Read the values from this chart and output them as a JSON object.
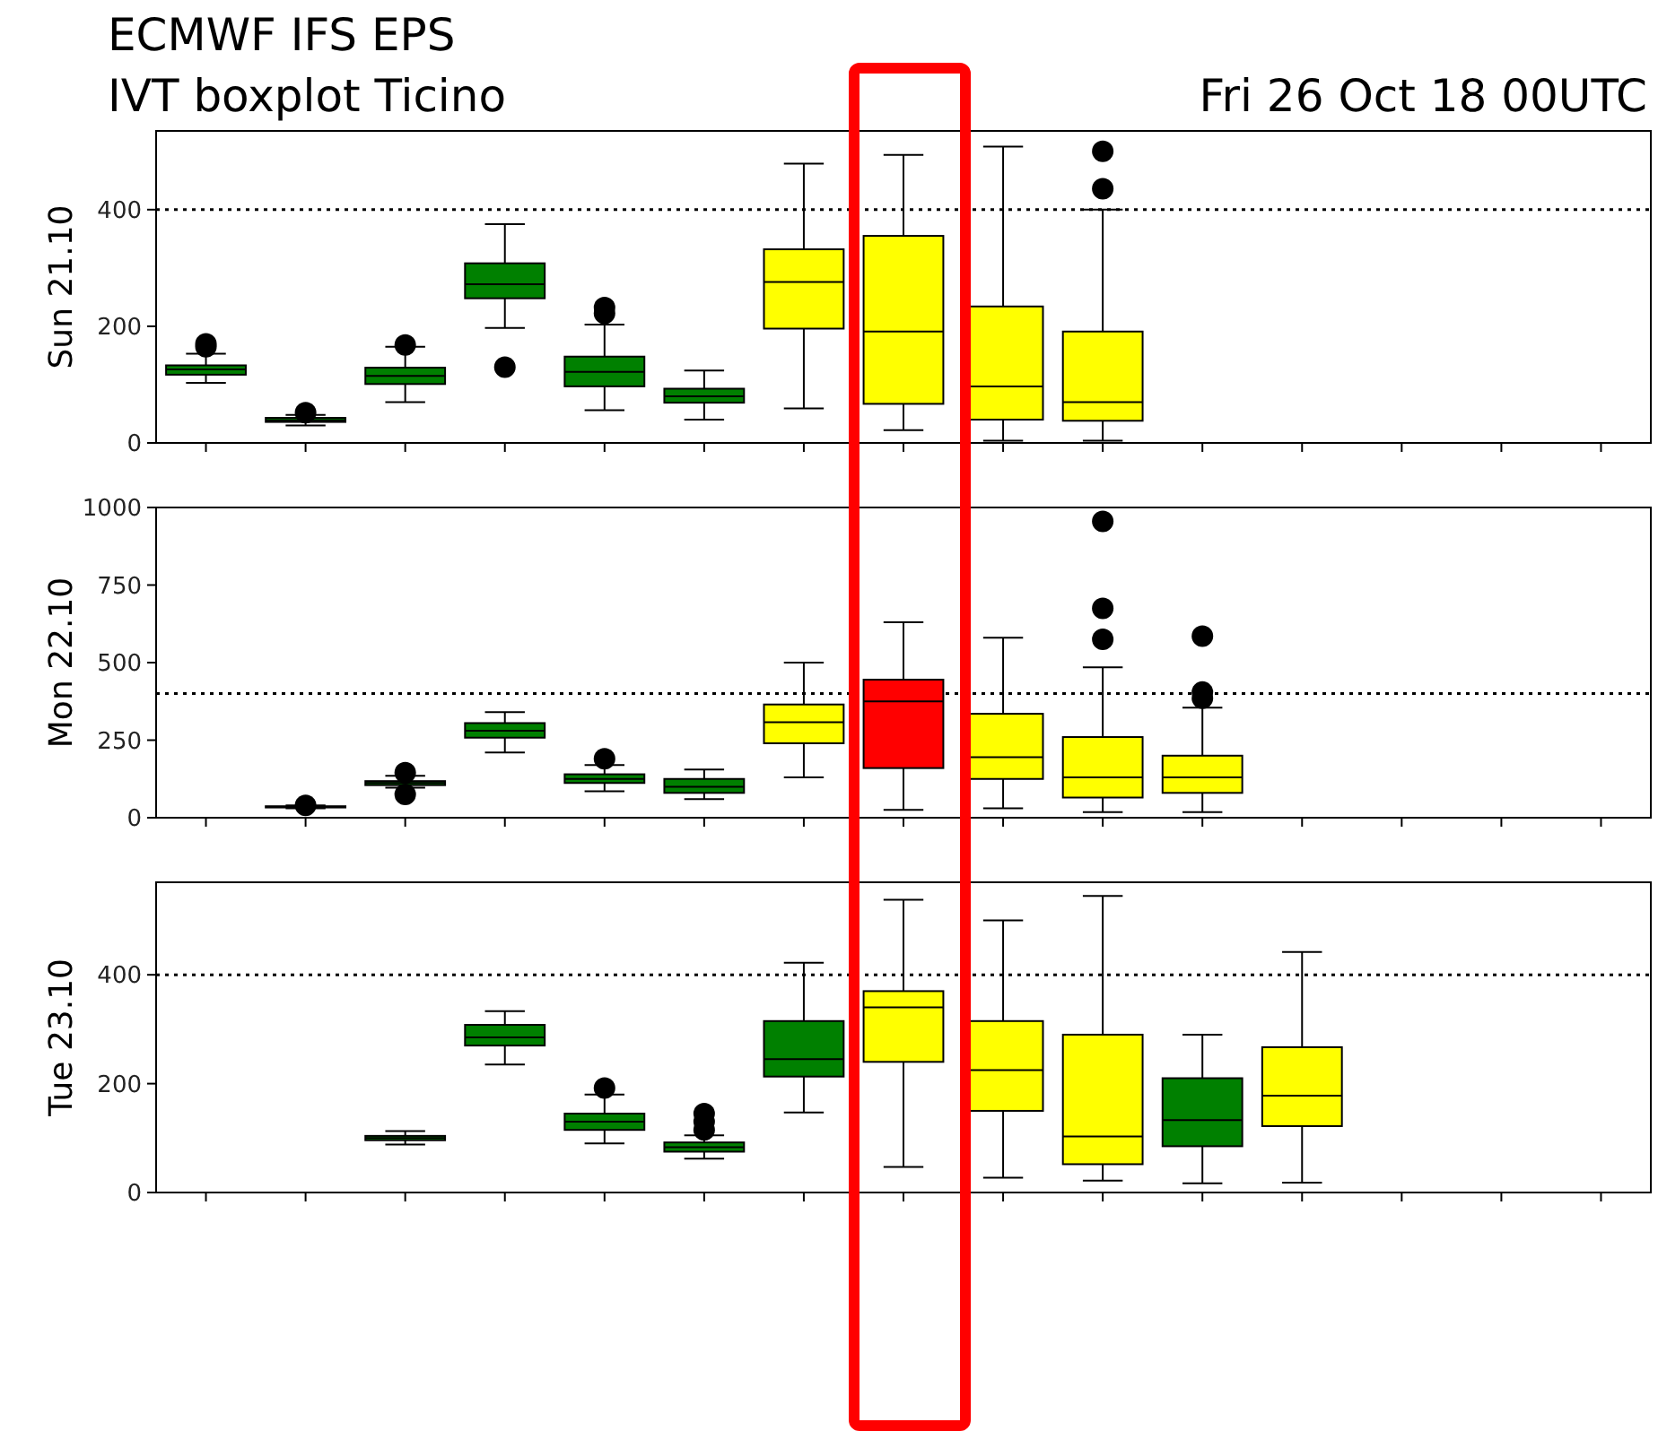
{
  "chart_data": [
    {
      "type": "box",
      "title": "ECMWF IFS EPS",
      "subtitle": "IVT boxplot Ticino",
      "annotations": [
        "Fri 26 Oct 18 00UTC"
      ],
      "ylabel": "Sun 21.10",
      "categories": [
        null,
        null,
        null,
        null,
        null,
        null,
        null,
        null,
        null,
        null,
        null,
        null,
        null,
        null,
        null
      ],
      "ylim": [
        0,
        535
      ],
      "yticks": [
        0,
        200,
        400
      ],
      "tick_labels": "y",
      "grid": false,
      "colors": [
        "#008000",
        "#008000",
        "#008000",
        "#008000",
        "#008000",
        "#008000",
        "#ffff00",
        "#ffff00",
        "#ffff00",
        "#ffff00",
        null,
        null,
        null,
        null,
        null
      ],
      "boxes": [
        {
          "low": 103,
          "q1": 117,
          "median": 126,
          "q3": 133,
          "high": 153,
          "outliers": [
            165,
            170
          ]
        },
        {
          "low": 30,
          "q1": 36,
          "median": 39,
          "q3": 43,
          "high": 48,
          "outliers": [
            52
          ]
        },
        {
          "low": 70,
          "q1": 101,
          "median": 115,
          "q3": 129,
          "high": 165,
          "outliers": [
            168
          ]
        },
        {
          "low": 197,
          "q1": 248,
          "median": 272,
          "q3": 308,
          "high": 375,
          "outliers": [
            130
          ]
        },
        {
          "low": 56,
          "q1": 97,
          "median": 122,
          "q3": 148,
          "high": 203,
          "outliers": [
            222,
            232
          ]
        },
        {
          "low": 40,
          "q1": 69,
          "median": 80,
          "q3": 93,
          "high": 124
        },
        {
          "low": 59,
          "q1": 196,
          "median": 276,
          "q3": 332,
          "high": 479
        },
        {
          "low": 22,
          "q1": 67,
          "median": 191,
          "q3": 355,
          "high": 494
        },
        {
          "low": 4,
          "q1": 40,
          "median": 97,
          "q3": 234,
          "high": 508
        },
        {
          "low": 4,
          "q1": 38,
          "median": 70,
          "q3": 191,
          "high": 400,
          "outliers": [
            436,
            500
          ]
        },
        null,
        null,
        null,
        null,
        null
      ],
      "ref_lines": [
        {
          "axis": "y",
          "value": 400,
          "color": "#000000",
          "line_style": "dotted"
        }
      ]
    },
    {
      "type": "box",
      "ylabel": "Mon 22.10",
      "categories": [
        null,
        null,
        null,
        null,
        null,
        null,
        null,
        null,
        null,
        null,
        null,
        null,
        null,
        null,
        null
      ],
      "ylim": [
        0,
        1000
      ],
      "yticks": [
        0,
        250,
        500,
        750,
        1000
      ],
      "tick_labels": "y",
      "grid": false,
      "colors": [
        null,
        "#008000",
        "#008000",
        "#008000",
        "#008000",
        "#008000",
        "#ffff00",
        "#ff0000",
        "#ffff00",
        "#ffff00",
        "#ffff00",
        null,
        null,
        null,
        null
      ],
      "boxes": [
        null,
        {
          "low": 30,
          "q1": 33,
          "median": 35,
          "q3": 37,
          "high": 40,
          "outliers": [
            40
          ]
        },
        {
          "low": 97,
          "q1": 105,
          "median": 112,
          "q3": 118,
          "high": 135,
          "outliers": [
            75,
            145
          ]
        },
        {
          "low": 210,
          "q1": 258,
          "median": 280,
          "q3": 305,
          "high": 340
        },
        {
          "low": 85,
          "q1": 112,
          "median": 125,
          "q3": 140,
          "high": 170,
          "outliers": [
            190
          ]
        },
        {
          "low": 60,
          "q1": 80,
          "median": 100,
          "q3": 125,
          "high": 155
        },
        {
          "low": 130,
          "q1": 240,
          "median": 308,
          "q3": 365,
          "high": 500
        },
        {
          "low": 25,
          "q1": 160,
          "median": 375,
          "q3": 445,
          "high": 630
        },
        {
          "low": 30,
          "q1": 125,
          "median": 195,
          "q3": 335,
          "high": 580
        },
        {
          "low": 18,
          "q1": 65,
          "median": 130,
          "q3": 260,
          "high": 485,
          "outliers": [
            575,
            675,
            955
          ]
        },
        {
          "low": 18,
          "q1": 80,
          "median": 130,
          "q3": 200,
          "high": 355,
          "outliers": [
            385,
            405,
            585
          ]
        },
        null,
        null,
        null,
        null
      ],
      "ref_lines": [
        {
          "axis": "y",
          "value": 400,
          "color": "#000000",
          "line_style": "dotted"
        }
      ]
    },
    {
      "type": "box",
      "ylabel": "Tue 23.10",
      "categories": [
        null,
        null,
        null,
        null,
        null,
        null,
        null,
        null,
        null,
        null,
        null,
        null,
        null,
        null,
        null
      ],
      "ylim": [
        0,
        570
      ],
      "yticks": [
        0,
        200,
        400
      ],
      "tick_labels": "y",
      "grid": false,
      "colors": [
        null,
        null,
        "#008000",
        "#008000",
        "#008000",
        "#008000",
        "#008000",
        "#ffff00",
        "#ffff00",
        "#ffff00",
        "#008000",
        "#ffff00",
        null,
        null,
        null
      ],
      "boxes": [
        null,
        null,
        {
          "low": 88,
          "q1": 96,
          "median": 100,
          "q3": 104,
          "high": 113
        },
        {
          "low": 235,
          "q1": 270,
          "median": 285,
          "q3": 308,
          "high": 333
        },
        {
          "low": 90,
          "q1": 115,
          "median": 130,
          "q3": 145,
          "high": 180,
          "outliers": [
            192
          ]
        },
        {
          "low": 62,
          "q1": 75,
          "median": 83,
          "q3": 92,
          "high": 105,
          "outliers": [
            115,
            130,
            145
          ]
        },
        {
          "low": 147,
          "q1": 213,
          "median": 245,
          "q3": 315,
          "high": 422
        },
        {
          "low": 47,
          "q1": 240,
          "median": 340,
          "q3": 370,
          "high": 538
        },
        {
          "low": 27,
          "q1": 150,
          "median": 225,
          "q3": 315,
          "high": 500
        },
        {
          "low": 22,
          "q1": 52,
          "median": 103,
          "q3": 290,
          "high": 545
        },
        {
          "low": 17,
          "q1": 85,
          "median": 133,
          "q3": 210,
          "high": 290
        },
        {
          "low": 18,
          "q1": 122,
          "median": 178,
          "q3": 267,
          "high": 442
        },
        null,
        null,
        null
      ],
      "ref_lines": [
        {
          "axis": "y",
          "value": 400,
          "color": "#000000",
          "line_style": "dotted"
        }
      ]
    }
  ]
}
